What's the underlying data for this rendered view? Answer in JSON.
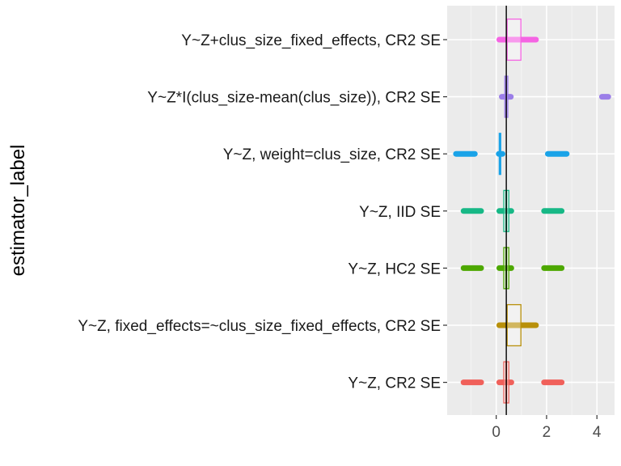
{
  "chart_data": {
    "type": "boxplot",
    "ylabel": "estimator_label",
    "xlabel": "",
    "xlim": [
      -1.95,
      4.7
    ],
    "xticks": [
      0,
      2,
      4
    ],
    "xtick_labels": [
      "0",
      "2",
      "4"
    ],
    "reference_line": 0.4,
    "grid": true,
    "legend": "none",
    "categories": [
      "Y~Z+clus_size_fixed_effects, CR2 SE",
      "Y~Z*I(clus_size-mean(clus_size)), CR2 SE",
      "Y~Z, weight=clus_size, CR2 SE",
      "Y~Z, IID SE",
      "Y~Z, HC2 SE",
      "Y~Z, fixed_effects=~clus_size_fixed_effects, CR2 SE",
      "Y~Z, CR2 SE"
    ],
    "series": [
      {
        "color": "#f564e3",
        "box": {
          "q1": 0.42,
          "median": 0.42,
          "q3": 0.98,
          "half_width": 0.1
        },
        "whisker": [
          0.12,
          1.58
        ],
        "outliers": []
      },
      {
        "color": "#9b7ee8",
        "box": {
          "q1": 0.34,
          "median": 0.4,
          "q3": 0.46,
          "half_width": 0.07
        },
        "whisker": [
          0.22,
          0.58
        ],
        "outliers": [
          [
            4.2,
            4.45
          ]
        ]
      },
      {
        "color": "#1aa3e8",
        "box": {
          "q1": 0.12,
          "median": 0.14,
          "q3": 0.18,
          "half_width": 0.07
        },
        "whisker": [
          0.16,
          0.16
        ],
        "outliers": [
          [
            -1.6,
            -0.85
          ],
          [
            0.1,
            0.25
          ],
          [
            2.05,
            2.8
          ]
        ]
      },
      {
        "color": "#17b886",
        "box": {
          "q1": 0.3,
          "median": 0.4,
          "q3": 0.5,
          "half_width": 0.1
        },
        "whisker": [
          0.12,
          0.6
        ],
        "outliers": [
          [
            -1.3,
            -0.6
          ],
          [
            1.9,
            2.6
          ]
        ]
      },
      {
        "color": "#4da800",
        "box": {
          "q1": 0.3,
          "median": 0.4,
          "q3": 0.5,
          "half_width": 0.1
        },
        "whisker": [
          0.12,
          0.6
        ],
        "outliers": [
          [
            -1.3,
            -0.6
          ],
          [
            1.9,
            2.6
          ]
        ]
      },
      {
        "color": "#b8900a",
        "box": {
          "q1": 0.42,
          "median": 0.42,
          "q3": 0.98,
          "half_width": 0.1
        },
        "whisker": [
          0.12,
          1.58
        ],
        "outliers": []
      },
      {
        "color": "#f0605a",
        "box": {
          "q1": 0.3,
          "median": 0.4,
          "q3": 0.5,
          "half_width": 0.1
        },
        "whisker": [
          0.12,
          0.6
        ],
        "outliers": [
          [
            -1.3,
            -0.6
          ],
          [
            1.9,
            2.6
          ]
        ]
      }
    ]
  }
}
